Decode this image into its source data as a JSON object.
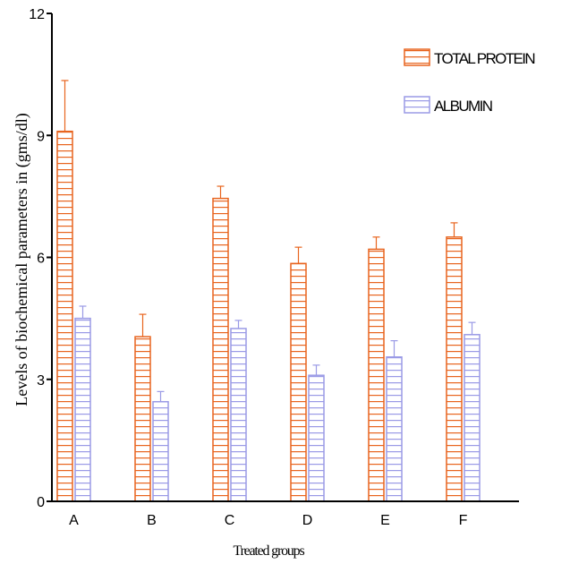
{
  "chart_data": {
    "type": "bar",
    "categories": [
      "A",
      "B",
      "C",
      "D",
      "E",
      "F"
    ],
    "series": [
      {
        "name": "TOTAL PROTEIN",
        "color": "#E8641E",
        "values": [
          9.1,
          4.05,
          7.45,
          5.85,
          6.2,
          6.5
        ],
        "errors": [
          1.25,
          0.55,
          0.3,
          0.4,
          0.3,
          0.35
        ]
      },
      {
        "name": "ALBUMIN",
        "color": "#9A9AE6",
        "values": [
          4.5,
          2.45,
          4.25,
          3.1,
          3.55,
          4.1
        ],
        "errors": [
          0.3,
          0.25,
          0.2,
          0.25,
          0.4,
          0.3
        ]
      }
    ],
    "ylim": [
      0,
      12
    ],
    "yticks": [
      "0",
      "3",
      "6",
      "9",
      "12"
    ],
    "xlabel": "Treated groups",
    "ylabel": "Levels of biochemical parameters in (gms/dl)",
    "legend_position": "top-right",
    "bar_pattern": "horizontal-stripes"
  }
}
